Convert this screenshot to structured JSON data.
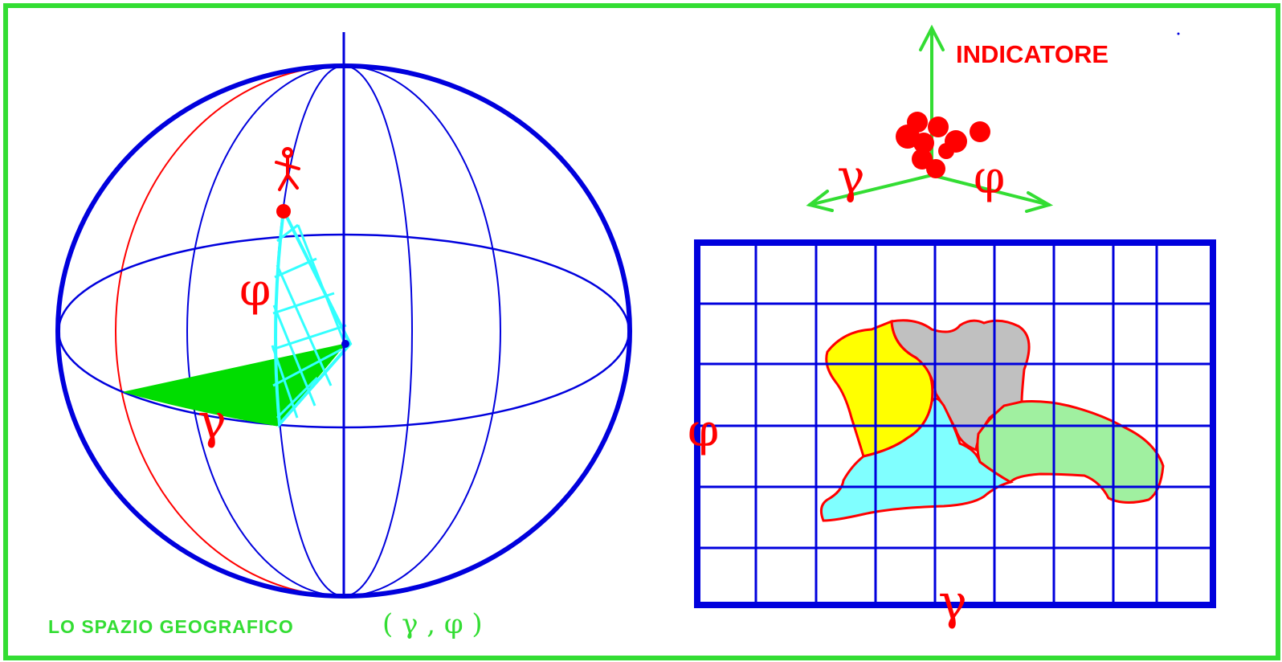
{
  "colors": {
    "frame": "#33dd33",
    "sphere": "#0000dd",
    "meridian_red": "#ff0000",
    "label_red": "#ff0000",
    "label_green": "#33dd33",
    "hatch": "#33ffff",
    "sector_fill": "#00dd00",
    "grid": "#0000dd",
    "region_yellow": "#ffff00",
    "region_gray": "#c0c0c0",
    "region_cyan": "#80ffff",
    "region_green": "#a0f0a0",
    "region_border": "#ff0000",
    "points": "#ff0000",
    "axes": "#33dd33"
  },
  "sphere": {
    "phi_label": "φ",
    "gamma_label": "γ",
    "person_icon": "person-icon"
  },
  "caption": {
    "text": "LO SPAZIO GEOGRAFICO",
    "formula": "( γ , φ )"
  },
  "indicator": {
    "title": "INDICATORE",
    "gamma_label": "γ",
    "phi_label": "φ"
  },
  "map": {
    "phi_label": "φ",
    "gamma_label": "γ",
    "columns": 9,
    "rows": 6
  }
}
